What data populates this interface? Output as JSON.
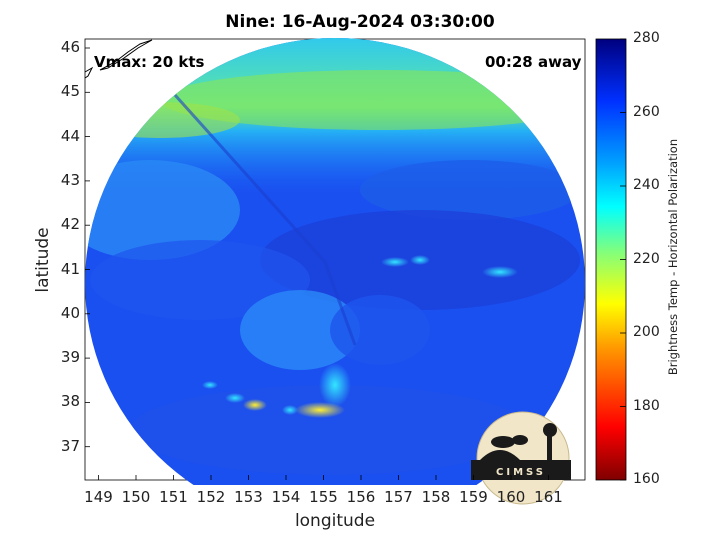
{
  "title": "Nine: 16-Aug-2024 03:30:00",
  "overlay": {
    "vmax": "Vmax: 20 kts",
    "time_away": "00:28 away"
  },
  "axes": {
    "xlabel": "longitude",
    "ylabel": "latitude",
    "xticks": [
      "149",
      "150",
      "151",
      "152",
      "153",
      "154",
      "155",
      "156",
      "157",
      "158",
      "159",
      "160",
      "161"
    ],
    "yticks": [
      "46",
      "45",
      "44",
      "43",
      "42",
      "41",
      "40",
      "39",
      "38",
      "37"
    ]
  },
  "colorbar": {
    "label": "Brightness Temp - Horizontal Polarization",
    "ticks": [
      "280",
      "260",
      "240",
      "220",
      "200",
      "180",
      "160"
    ],
    "range": [
      160,
      280
    ],
    "colors": [
      "#7f0000",
      "#ff0000",
      "#ff8c00",
      "#ffff00",
      "#7fff7f",
      "#00ffff",
      "#0080ff",
      "#0000ff",
      "#00007f"
    ]
  },
  "logo": {
    "text": "CIMSS"
  }
}
